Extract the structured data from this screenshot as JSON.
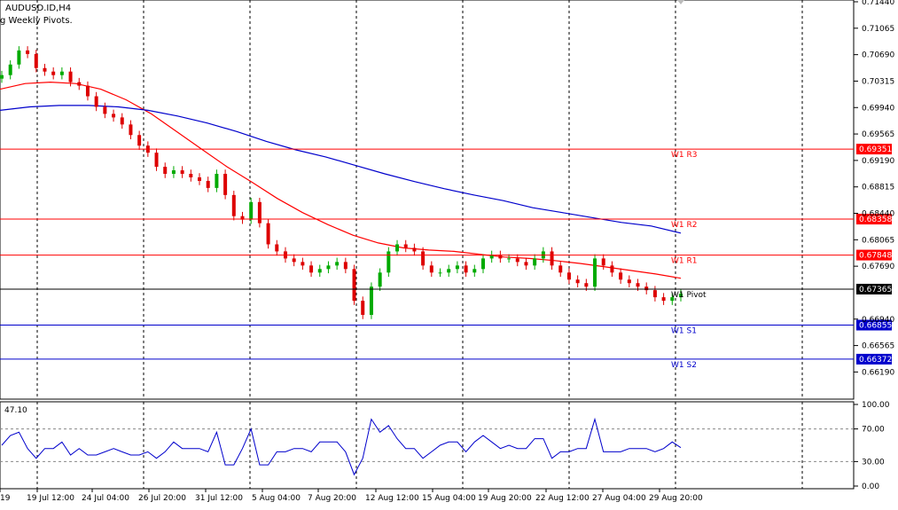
{
  "header": {
    "symbol_label": "AUDUSD.ID,H4",
    "indicator_label": "g Weekly Pivots."
  },
  "price_axis": {
    "ticks": [
      "0.71440",
      "0.71065",
      "0.70690",
      "0.70315",
      "0.69940",
      "0.69565",
      "0.69190",
      "0.68815",
      "0.68440",
      "0.68065",
      "0.67690",
      "0.66940",
      "0.66565",
      "0.66190"
    ],
    "tick_values": [
      0.7144,
      0.71065,
      0.7069,
      0.70315,
      0.6994,
      0.69565,
      0.6919,
      0.68815,
      0.6844,
      0.68065,
      0.6769,
      0.6694,
      0.66565,
      0.6619
    ],
    "range": [
      0.66195,
      0.7144
    ]
  },
  "levels": [
    {
      "name": "W1 R3",
      "value": 0.69351,
      "label": "0.69351",
      "color": "#ff0000",
      "tag_bg": "#ff0000"
    },
    {
      "name": "W1 R2",
      "value": 0.68358,
      "label": "0.68358",
      "color": "#ff0000",
      "tag_bg": "#ff0000"
    },
    {
      "name": "W1 R1",
      "value": 0.67848,
      "label": "0.67848",
      "color": "#ff0000",
      "tag_bg": "#ff0000"
    },
    {
      "name": "W1 Pivot",
      "value": 0.67365,
      "label": "0.67365",
      "color": "#000000",
      "tag_bg": "#000000"
    },
    {
      "name": "W1 S1",
      "value": 0.66855,
      "label": "0.66855",
      "color": "#0000cc",
      "tag_bg": "#0000cc"
    },
    {
      "name": "W1 S2",
      "value": 0.66372,
      "label": "0.66372",
      "color": "#0000cc",
      "tag_bg": "#0000cc"
    }
  ],
  "time_axis": {
    "labels": [
      "19",
      "19 Jul 12:00",
      "24 Jul 04:00",
      "26 Jul 20:00",
      "31 Jul 12:00",
      "5 Aug 04:00",
      "7 Aug 20:00",
      "12 Aug 12:00",
      "15 Aug 04:00",
      "19 Aug 20:00",
      "22 Aug 12:00",
      "27 Aug 04:00",
      "29 Aug 20:00"
    ]
  },
  "oscillator": {
    "current_value_label": "47.10",
    "ticks": [
      "100.00",
      "70.00",
      "30.00",
      "0.00"
    ],
    "tick_values": [
      100,
      70,
      30,
      0
    ]
  },
  "colors": {
    "bull": "#00aa00",
    "bear": "#dd0000",
    "ma_fast": "#ff0000",
    "ma_slow": "#0000cc",
    "grid": "#000000",
    "osc_line": "#0000cc"
  },
  "chart_data": {
    "type": "candlestick",
    "symbol": "AUDUSD.ID",
    "timeframe": "H4",
    "series": [
      {
        "name": "price",
        "closes": [
          0.704,
          0.7055,
          0.7075,
          0.707,
          0.705,
          0.7045,
          0.704,
          0.7045,
          0.703,
          0.7025,
          0.701,
          0.6995,
          0.6985,
          0.698,
          0.697,
          0.6955,
          0.694,
          0.693,
          0.691,
          0.69,
          0.6905,
          0.69,
          0.6895,
          0.689,
          0.688,
          0.69,
          0.687,
          0.684,
          0.6835,
          0.686,
          0.683,
          0.68,
          0.679,
          0.678,
          0.6775,
          0.677,
          0.676,
          0.6765,
          0.677,
          0.6775,
          0.6765,
          0.672,
          0.67,
          0.674,
          0.676,
          0.679,
          0.68,
          0.6795,
          0.679,
          0.677,
          0.676,
          0.676,
          0.6765,
          0.677,
          0.676,
          0.6765,
          0.678,
          0.6785,
          0.678,
          0.678,
          0.6775,
          0.677,
          0.678,
          0.679,
          0.677,
          0.676,
          0.675,
          0.6745,
          0.674,
          0.678,
          0.677,
          0.676,
          0.675,
          0.6745,
          0.674,
          0.6735,
          0.6725,
          0.672,
          0.6725,
          0.673
        ]
      },
      {
        "name": "ma_fast",
        "values": [
          0.702,
          0.7028,
          0.703,
          0.7028,
          0.702,
          0.7005,
          0.6985,
          0.696,
          0.6935,
          0.691,
          0.6888,
          0.6865,
          0.6845,
          0.6828,
          0.6813,
          0.6802,
          0.6795,
          0.6792,
          0.679,
          0.6786,
          0.6782,
          0.678,
          0.6777,
          0.6773,
          0.6768,
          0.6763,
          0.6758,
          0.6752
        ]
      },
      {
        "name": "ma_slow",
        "values": [
          0.699,
          0.6995,
          0.6997,
          0.6997,
          0.6995,
          0.699,
          0.6982,
          0.6972,
          0.696,
          0.6946,
          0.6934,
          0.6924,
          0.6912,
          0.69,
          0.6889,
          0.6879,
          0.687,
          0.6862,
          0.6852,
          0.6845,
          0.6838,
          0.6831,
          0.6826,
          0.6816
        ]
      }
    ],
    "oscillator": {
      "name": "",
      "value": 47.1
    }
  }
}
